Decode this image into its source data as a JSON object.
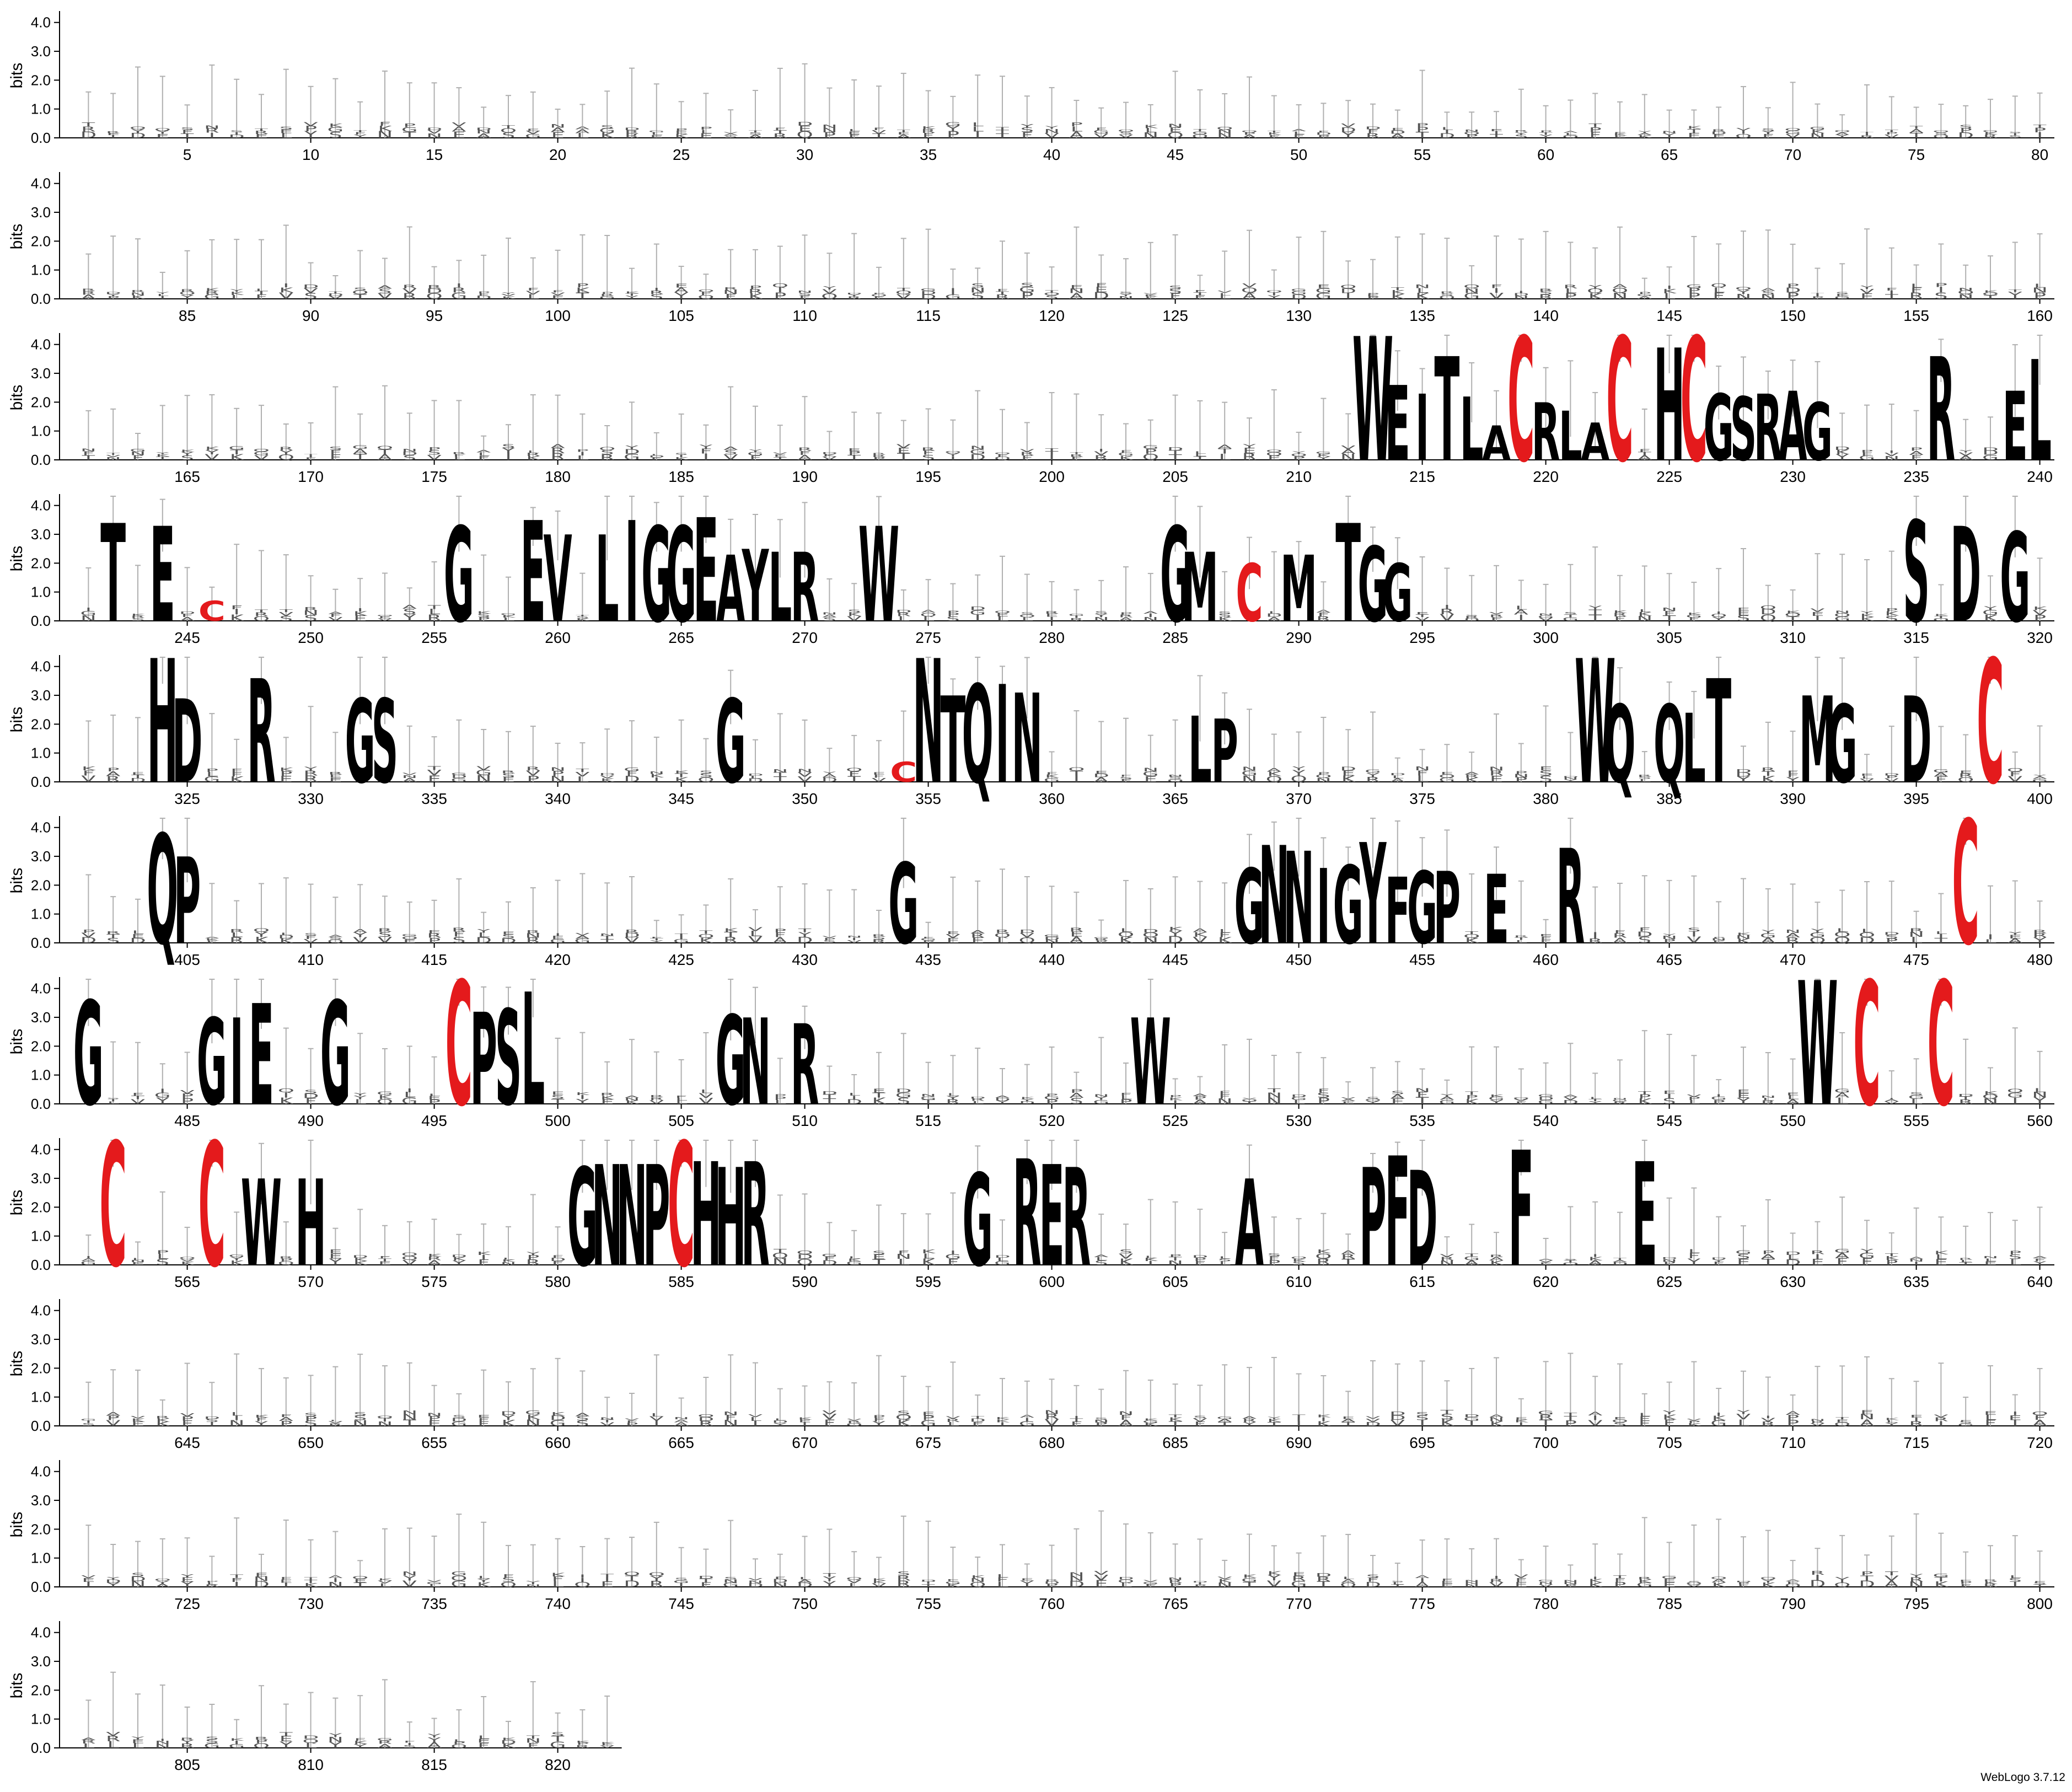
{
  "chart_data": {
    "type": "sequence-logo",
    "ylabel": "bits",
    "y_ticks": [
      "0.0",
      "1.0",
      "2.0",
      "3.0",
      "4.0"
    ],
    "ylim": [
      0,
      4.32
    ],
    "positions_per_row": 80,
    "rows": [
      {
        "start": 1,
        "end": 80
      },
      {
        "start": 81,
        "end": 160
      },
      {
        "start": 161,
        "end": 240
      },
      {
        "start": 241,
        "end": 320
      },
      {
        "start": 321,
        "end": 400
      },
      {
        "start": 401,
        "end": 480
      },
      {
        "start": 481,
        "end": 560
      },
      {
        "start": 561,
        "end": 640
      },
      {
        "start": 641,
        "end": 720
      },
      {
        "start": 721,
        "end": 800
      },
      {
        "start": 801,
        "end": 822
      }
    ],
    "highlight_color": "#e41a1c",
    "default_color": "#000000",
    "error_bar_color": "#b0b0b0",
    "conserved_letters": [
      {
        "pos": 213,
        "letter": "W",
        "bits": 4.3
      },
      {
        "pos": 214,
        "letter": "E",
        "bits": 2.6
      },
      {
        "pos": 215,
        "letter": "I",
        "bits": 2.3
      },
      {
        "pos": 216,
        "letter": "T",
        "bits": 3.6
      },
      {
        "pos": 217,
        "letter": "L",
        "bits": 2.2
      },
      {
        "pos": 218,
        "letter": "A",
        "bits": 1.2
      },
      {
        "pos": 219,
        "letter": "C",
        "bits": 4.3,
        "color": "#e41a1c"
      },
      {
        "pos": 220,
        "letter": "R",
        "bits": 2.0
      },
      {
        "pos": 221,
        "letter": "L",
        "bits": 1.7
      },
      {
        "pos": 222,
        "letter": "A",
        "bits": 1.3
      },
      {
        "pos": 223,
        "letter": "C",
        "bits": 4.3,
        "color": "#e41a1c"
      },
      {
        "pos": 225,
        "letter": "H",
        "bits": 3.9
      },
      {
        "pos": 226,
        "letter": "C",
        "bits": 4.3,
        "color": "#e41a1c"
      },
      {
        "pos": 227,
        "letter": "G",
        "bits": 2.3
      },
      {
        "pos": 228,
        "letter": "S",
        "bits": 2.2
      },
      {
        "pos": 229,
        "letter": "R",
        "bits": 2.3
      },
      {
        "pos": 230,
        "letter": "A",
        "bits": 2.4
      },
      {
        "pos": 231,
        "letter": "G",
        "bits": 2.0
      },
      {
        "pos": 236,
        "letter": "R",
        "bits": 3.6
      },
      {
        "pos": 239,
        "letter": "E",
        "bits": 2.4
      },
      {
        "pos": 240,
        "letter": "L",
        "bits": 3.5
      },
      {
        "pos": 242,
        "letter": "T",
        "bits": 3.4
      },
      {
        "pos": 244,
        "letter": "E",
        "bits": 3.3
      },
      {
        "pos": 246,
        "letter": "C",
        "bits": 0.7,
        "color": "#e41a1c"
      },
      {
        "pos": 256,
        "letter": "G",
        "bits": 3.3
      },
      {
        "pos": 259,
        "letter": "E",
        "bits": 3.5
      },
      {
        "pos": 260,
        "letter": "V",
        "bits": 3.0
      },
      {
        "pos": 262,
        "letter": "L",
        "bits": 3.0
      },
      {
        "pos": 263,
        "letter": "I",
        "bits": 3.5
      },
      {
        "pos": 264,
        "letter": "G",
        "bits": 3.3
      },
      {
        "pos": 265,
        "letter": "G",
        "bits": 3.3
      },
      {
        "pos": 266,
        "letter": "E",
        "bits": 3.6
      },
      {
        "pos": 267,
        "letter": "A",
        "bits": 2.3
      },
      {
        "pos": 268,
        "letter": "Y",
        "bits": 2.5
      },
      {
        "pos": 269,
        "letter": "L",
        "bits": 2.4
      },
      {
        "pos": 270,
        "letter": "R",
        "bits": 2.4
      },
      {
        "pos": 273,
        "letter": "W",
        "bits": 3.3
      },
      {
        "pos": 285,
        "letter": "G",
        "bits": 3.3
      },
      {
        "pos": 286,
        "letter": "M",
        "bits": 2.4
      },
      {
        "pos": 288,
        "letter": "C",
        "bits": 2.0,
        "color": "#e41a1c"
      },
      {
        "pos": 290,
        "letter": "M",
        "bits": 2.3
      },
      {
        "pos": 292,
        "letter": "T",
        "bits": 3.4
      },
      {
        "pos": 293,
        "letter": "G",
        "bits": 2.6
      },
      {
        "pos": 294,
        "letter": "G",
        "bits": 2.0
      },
      {
        "pos": 315,
        "letter": "S",
        "bits": 3.5
      },
      {
        "pos": 317,
        "letter": "D",
        "bits": 3.3
      },
      {
        "pos": 319,
        "letter": "G",
        "bits": 3.1
      },
      {
        "pos": 324,
        "letter": "H",
        "bits": 4.3
      },
      {
        "pos": 325,
        "letter": "D",
        "bits": 2.9
      },
      {
        "pos": 328,
        "letter": "R",
        "bits": 3.6
      },
      {
        "pos": 332,
        "letter": "G",
        "bits": 2.9
      },
      {
        "pos": 333,
        "letter": "S",
        "bits": 2.9
      },
      {
        "pos": 347,
        "letter": "G",
        "bits": 2.9
      },
      {
        "pos": 354,
        "letter": "C",
        "bits": 0.7,
        "color": "#e41a1c"
      },
      {
        "pos": 355,
        "letter": "N",
        "bits": 4.3
      },
      {
        "pos": 356,
        "letter": "T",
        "bits": 3.0
      },
      {
        "pos": 357,
        "letter": "Q",
        "bits": 3.4
      },
      {
        "pos": 358,
        "letter": "I",
        "bits": 3.4
      },
      {
        "pos": 359,
        "letter": "N",
        "bits": 3.1
      },
      {
        "pos": 366,
        "letter": "L",
        "bits": 2.3
      },
      {
        "pos": 367,
        "letter": "P",
        "bits": 2.2
      },
      {
        "pos": 382,
        "letter": "W",
        "bits": 4.3
      },
      {
        "pos": 383,
        "letter": "Q",
        "bits": 2.7
      },
      {
        "pos": 385,
        "letter": "Q",
        "bits": 2.7
      },
      {
        "pos": 386,
        "letter": "L",
        "bits": 2.4
      },
      {
        "pos": 387,
        "letter": "T",
        "bits": 3.6
      },
      {
        "pos": 391,
        "letter": "M",
        "bits": 3.0
      },
      {
        "pos": 392,
        "letter": "G",
        "bits": 2.7
      },
      {
        "pos": 395,
        "letter": "D",
        "bits": 3.0
      },
      {
        "pos": 398,
        "letter": "C",
        "bits": 4.3,
        "color": "#e41a1c"
      },
      {
        "pos": 404,
        "letter": "Q",
        "bits": 3.8
      },
      {
        "pos": 405,
        "letter": "P",
        "bits": 3.0
      },
      {
        "pos": 434,
        "letter": "G",
        "bits": 2.8
      },
      {
        "pos": 448,
        "letter": "G",
        "bits": 2.6
      },
      {
        "pos": 449,
        "letter": "N",
        "bits": 3.4
      },
      {
        "pos": 450,
        "letter": "N",
        "bits": 3.2
      },
      {
        "pos": 451,
        "letter": "I",
        "bits": 2.6
      },
      {
        "pos": 452,
        "letter": "G",
        "bits": 2.7
      },
      {
        "pos": 453,
        "letter": "Y",
        "bits": 3.5
      },
      {
        "pos": 454,
        "letter": "F",
        "bits": 2.3
      },
      {
        "pos": 455,
        "letter": "G",
        "bits": 2.5
      },
      {
        "pos": 456,
        "letter": "P",
        "bits": 2.5
      },
      {
        "pos": 458,
        "letter": "E",
        "bits": 2.4
      },
      {
        "pos": 461,
        "letter": "R",
        "bits": 3.3
      },
      {
        "pos": 477,
        "letter": "C",
        "bits": 4.3,
        "color": "#e41a1c"
      },
      {
        "pos": 481,
        "letter": "G",
        "bits": 3.6
      },
      {
        "pos": 486,
        "letter": "G",
        "bits": 3.0
      },
      {
        "pos": 487,
        "letter": "I",
        "bits": 3.0
      },
      {
        "pos": 488,
        "letter": "E",
        "bits": 3.5
      },
      {
        "pos": 491,
        "letter": "G",
        "bits": 3.6
      },
      {
        "pos": 496,
        "letter": "C",
        "bits": 4.3,
        "color": "#e41a1c"
      },
      {
        "pos": 497,
        "letter": "P",
        "bits": 3.2
      },
      {
        "pos": 498,
        "letter": "S",
        "bits": 3.3
      },
      {
        "pos": 499,
        "letter": "L",
        "bits": 3.9
      },
      {
        "pos": 507,
        "letter": "G",
        "bits": 3.1
      },
      {
        "pos": 508,
        "letter": "N",
        "bits": 3.0
      },
      {
        "pos": 510,
        "letter": "R",
        "bits": 2.8
      },
      {
        "pos": 524,
        "letter": "W",
        "bits": 3.0
      },
      {
        "pos": 551,
        "letter": "W",
        "bits": 4.3
      },
      {
        "pos": 553,
        "letter": "C",
        "bits": 4.3,
        "color": "#e41a1c"
      },
      {
        "pos": 556,
        "letter": "C",
        "bits": 4.3,
        "color": "#e41a1c"
      },
      {
        "pos": 562,
        "letter": "C",
        "bits": 4.3,
        "color": "#e41a1c"
      },
      {
        "pos": 566,
        "letter": "C",
        "bits": 4.3,
        "color": "#e41a1c"
      },
      {
        "pos": 568,
        "letter": "W",
        "bits": 3.0
      },
      {
        "pos": 570,
        "letter": "H",
        "bits": 3.0
      },
      {
        "pos": 581,
        "letter": "G",
        "bits": 3.4
      },
      {
        "pos": 582,
        "letter": "N",
        "bits": 3.5
      },
      {
        "pos": 583,
        "letter": "N",
        "bits": 3.5
      },
      {
        "pos": 584,
        "letter": "P",
        "bits": 3.5
      },
      {
        "pos": 585,
        "letter": "C",
        "bits": 4.3,
        "color": "#e41a1c"
      },
      {
        "pos": 586,
        "letter": "H",
        "bits": 3.6
      },
      {
        "pos": 587,
        "letter": "H",
        "bits": 3.4
      },
      {
        "pos": 588,
        "letter": "R",
        "bits": 3.6
      },
      {
        "pos": 597,
        "letter": "G",
        "bits": 3.2
      },
      {
        "pos": 599,
        "letter": "R",
        "bits": 3.7
      },
      {
        "pos": 600,
        "letter": "E",
        "bits": 3.5
      },
      {
        "pos": 601,
        "letter": "R",
        "bits": 3.4
      },
      {
        "pos": 608,
        "letter": "A",
        "bits": 3.0
      },
      {
        "pos": 613,
        "letter": "P",
        "bits": 3.4
      },
      {
        "pos": 614,
        "letter": "F",
        "bits": 3.8
      },
      {
        "pos": 615,
        "letter": "D",
        "bits": 3.3
      },
      {
        "pos": 619,
        "letter": "F",
        "bits": 4.0
      },
      {
        "pos": 624,
        "letter": "E",
        "bits": 3.6
      }
    ],
    "low_info_letters": [
      "L",
      "A",
      "E",
      "G",
      "V",
      "R",
      "S",
      "T",
      "D",
      "K",
      "I",
      "P",
      "N",
      "Q",
      "F",
      "Y"
    ],
    "footer_text": "WebLogo 3.7.12"
  }
}
